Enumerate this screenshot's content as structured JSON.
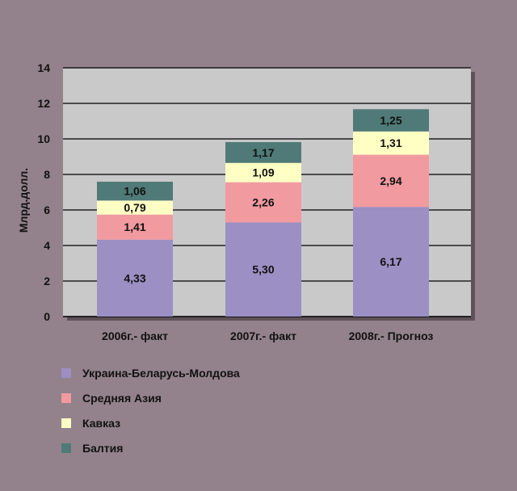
{
  "chart_data": {
    "type": "bar",
    "stacked": true,
    "ylabel": "Млрд.долл.",
    "xlabel": "",
    "ylim": [
      0,
      14
    ],
    "yticks": [
      0,
      2,
      4,
      6,
      8,
      10,
      12,
      14
    ],
    "grid": true,
    "legend_position": "bottom-left",
    "categories": [
      "2006г.- факт",
      "2007г.- факт",
      "2008г.- Прогноз"
    ],
    "series": [
      {
        "name": "Украина-Беларусь-Молдова",
        "values": [
          4.33,
          5.3,
          6.17
        ],
        "labels": [
          "4,33",
          "5,30",
          "6,17"
        ],
        "color": "#9b8fc3"
      },
      {
        "name": "Средняя Азия",
        "values": [
          1.41,
          2.26,
          2.94
        ],
        "labels": [
          "1,41",
          "2,26",
          "2,94"
        ],
        "color": "#f19aa0"
      },
      {
        "name": "Кавказ",
        "values": [
          0.79,
          1.09,
          1.31
        ],
        "labels": [
          "0,79",
          "1,09",
          "1,31"
        ],
        "color": "#ffffc4"
      },
      {
        "name": "Балтия",
        "values": [
          1.06,
          1.17,
          1.25
        ],
        "labels": [
          "1,06",
          "1,17",
          "1,25"
        ],
        "color": "#4f7a77"
      }
    ],
    "colors": {
      "plot_background": "#c9c9c9",
      "page_background": "#93828b",
      "gridline": "#000000"
    }
  }
}
